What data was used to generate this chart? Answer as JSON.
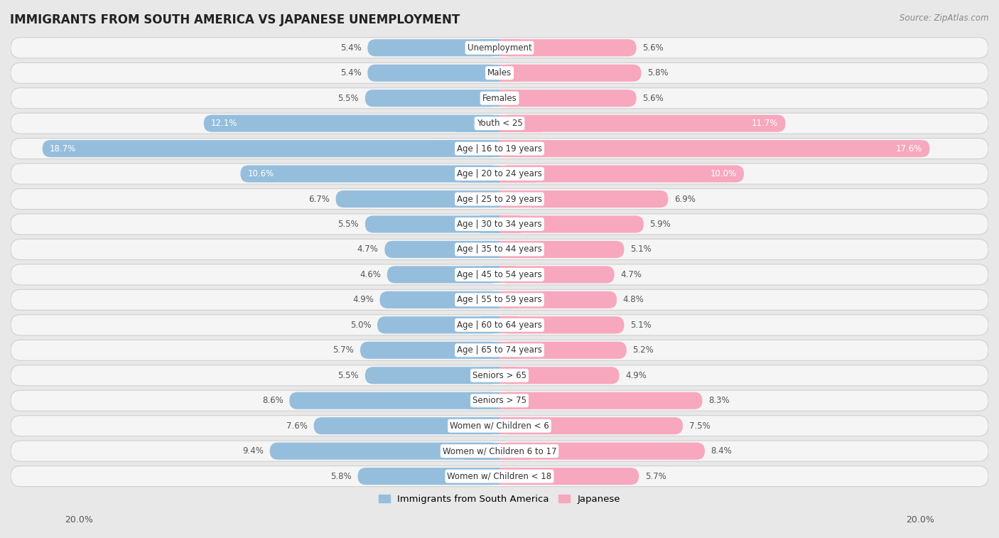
{
  "title": "IMMIGRANTS FROM SOUTH AMERICA VS JAPANESE UNEMPLOYMENT",
  "source": "Source: ZipAtlas.com",
  "categories": [
    "Unemployment",
    "Males",
    "Females",
    "Youth < 25",
    "Age | 16 to 19 years",
    "Age | 20 to 24 years",
    "Age | 25 to 29 years",
    "Age | 30 to 34 years",
    "Age | 35 to 44 years",
    "Age | 45 to 54 years",
    "Age | 55 to 59 years",
    "Age | 60 to 64 years",
    "Age | 65 to 74 years",
    "Seniors > 65",
    "Seniors > 75",
    "Women w/ Children < 6",
    "Women w/ Children 6 to 17",
    "Women w/ Children < 18"
  ],
  "left_values": [
    5.4,
    5.4,
    5.5,
    12.1,
    18.7,
    10.6,
    6.7,
    5.5,
    4.7,
    4.6,
    4.9,
    5.0,
    5.7,
    5.5,
    8.6,
    7.6,
    9.4,
    5.8
  ],
  "right_values": [
    5.6,
    5.8,
    5.6,
    11.7,
    17.6,
    10.0,
    6.9,
    5.9,
    5.1,
    4.7,
    4.8,
    5.1,
    5.2,
    4.9,
    8.3,
    7.5,
    8.4,
    5.7
  ],
  "left_color": "#95bedd",
  "right_color": "#f7a8be",
  "left_color_dark": "#6b9ec4",
  "right_color_dark": "#f07090",
  "axis_max": 20.0,
  "background_color": "#e8e8e8",
  "row_bg_color": "#f5f5f5",
  "row_border_color": "#d0d0d0",
  "legend_left": "Immigrants from South America",
  "legend_right": "Japanese",
  "title_fontsize": 12,
  "source_fontsize": 8.5,
  "value_fontsize": 8.5,
  "cat_fontsize": 8.5
}
